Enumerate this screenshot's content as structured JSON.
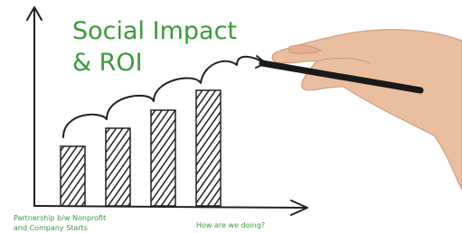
{
  "title": {
    "lines": [
      "Social Impact",
      "& ROI"
    ]
  },
  "labels": {
    "start": [
      "Partnership b/w Nonprofit",
      "and Company Starts"
    ],
    "end": "How are we doing?"
  }
}
